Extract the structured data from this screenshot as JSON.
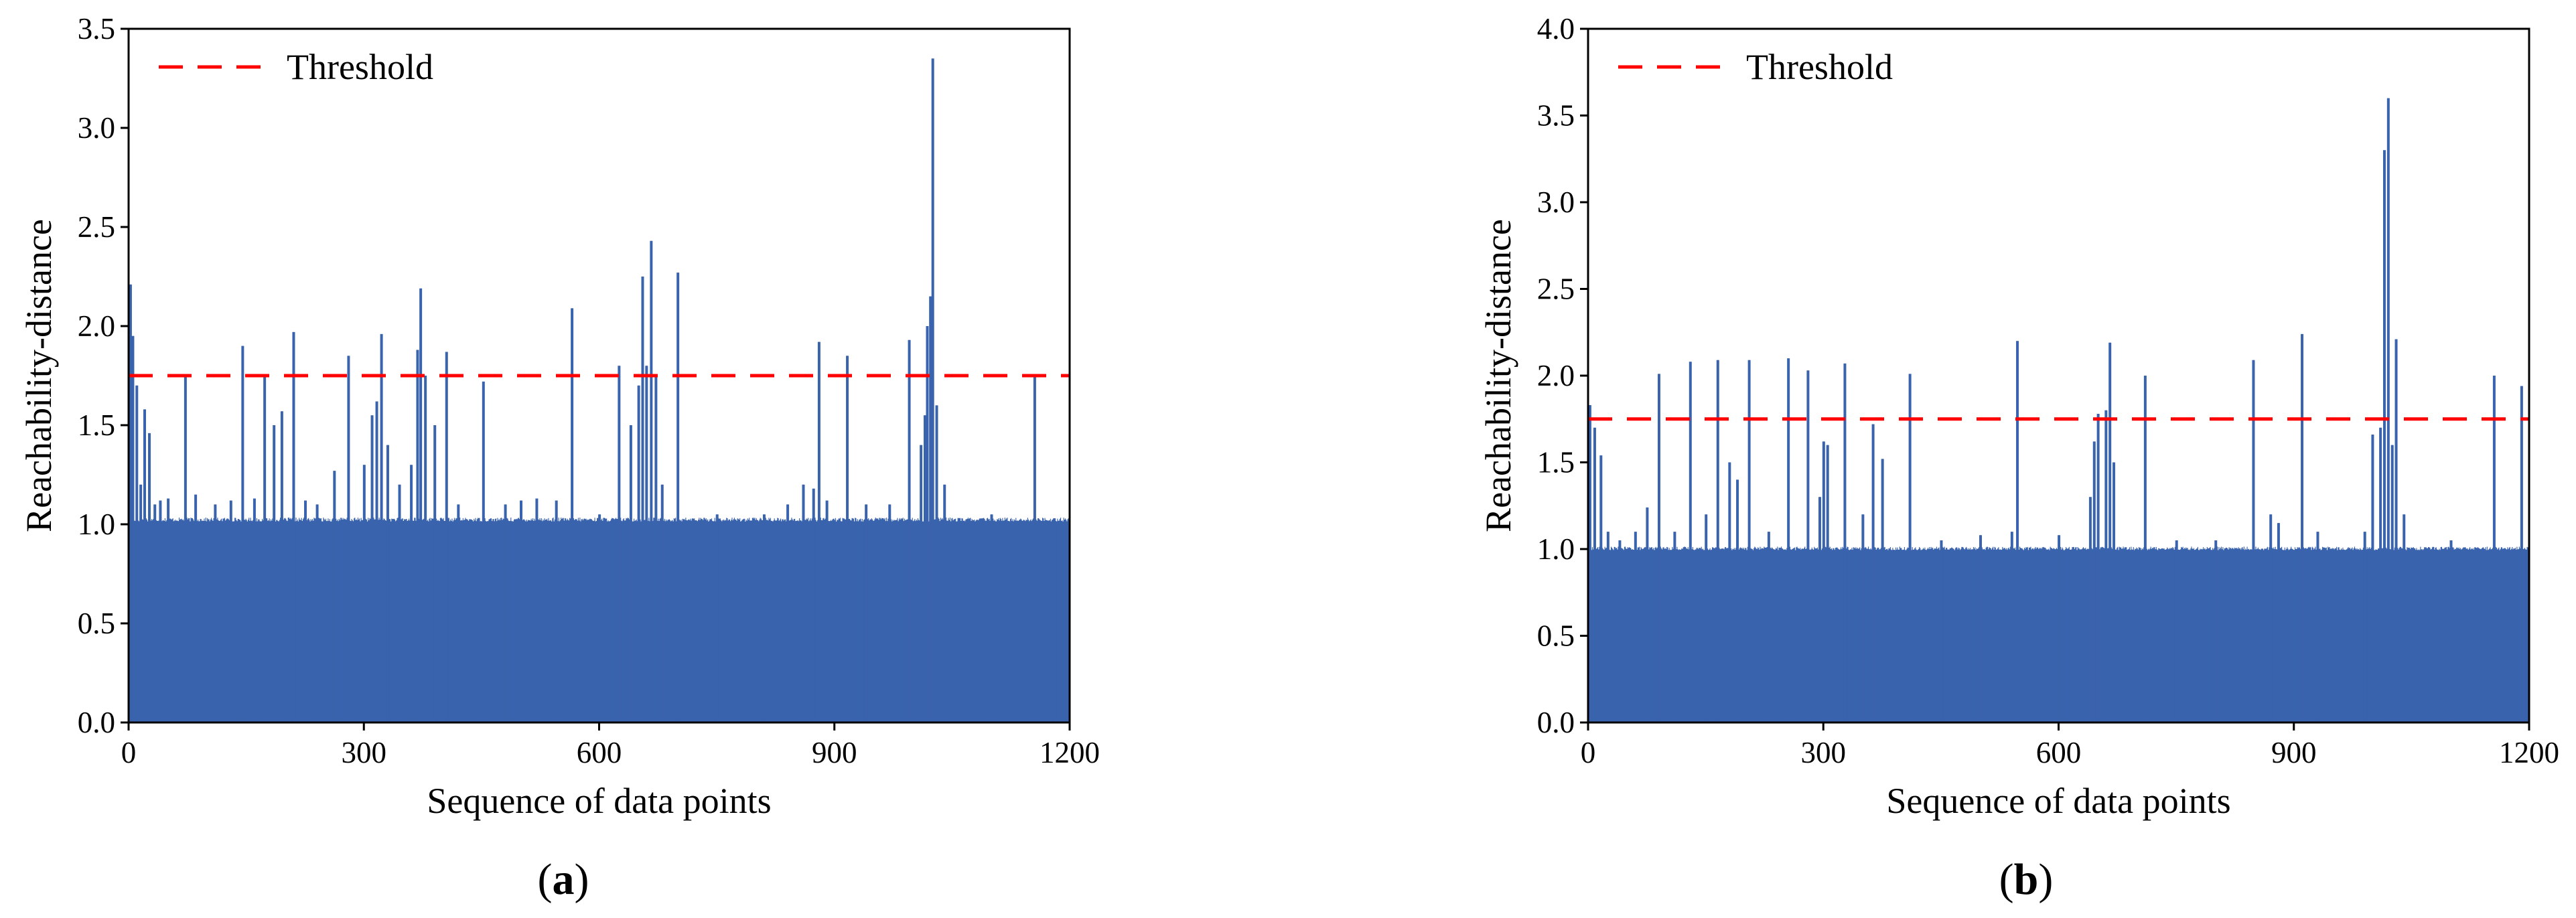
{
  "figure": {
    "panels": [
      {
        "label_open": "(",
        "label_letter": "a",
        "label_close": ")"
      },
      {
        "label_open": "(",
        "label_letter": "b",
        "label_close": ")"
      }
    ]
  },
  "chart_data": [
    {
      "type": "area",
      "title": "",
      "xlabel": "Sequence of data points",
      "ylabel": "Reachability-distance",
      "xlim": [
        0,
        1200
      ],
      "ylim": [
        0,
        3.5
      ],
      "xticks": [
        0,
        300,
        600,
        900,
        1200
      ],
      "yticks": [
        0.0,
        0.5,
        1.0,
        1.5,
        2.0,
        2.5,
        3.0,
        3.5
      ],
      "grid": false,
      "legend": {
        "position": "top-left",
        "entries": [
          "Threshold"
        ]
      },
      "threshold": 1.75,
      "series": [
        {
          "color": "#3a63ad",
          "baseline": 1.02,
          "noise": 0.02,
          "spikes": [
            [
              2,
              2.21
            ],
            [
              5,
              1.95
            ],
            [
              10,
              1.7
            ],
            [
              15,
              1.2
            ],
            [
              20,
              1.58
            ],
            [
              26,
              1.46
            ],
            [
              33,
              1.1
            ],
            [
              40,
              1.12
            ],
            [
              50,
              1.13
            ],
            [
              72,
              1.75
            ],
            [
              85,
              1.15
            ],
            [
              110,
              1.1
            ],
            [
              130,
              1.12
            ],
            [
              145,
              1.9
            ],
            [
              160,
              1.13
            ],
            [
              173,
              1.75
            ],
            [
              185,
              1.5
            ],
            [
              195,
              1.57
            ],
            [
              210,
              1.97
            ],
            [
              225,
              1.12
            ],
            [
              240,
              1.1
            ],
            [
              262,
              1.27
            ],
            [
              280,
              1.85
            ],
            [
              300,
              1.3
            ],
            [
              310,
              1.55
            ],
            [
              316,
              1.62
            ],
            [
              322,
              1.96
            ],
            [
              330,
              1.4
            ],
            [
              345,
              1.2
            ],
            [
              360,
              1.3
            ],
            [
              368,
              1.88
            ],
            [
              372,
              2.19
            ],
            [
              378,
              1.75
            ],
            [
              390,
              1.5
            ],
            [
              405,
              1.87
            ],
            [
              420,
              1.1
            ],
            [
              452,
              1.72
            ],
            [
              480,
              1.1
            ],
            [
              500,
              1.12
            ],
            [
              520,
              1.13
            ],
            [
              545,
              1.12
            ],
            [
              565,
              2.09
            ],
            [
              600,
              1.05
            ],
            [
              625,
              1.8
            ],
            [
              640,
              1.5
            ],
            [
              650,
              1.7
            ],
            [
              655,
              2.25
            ],
            [
              660,
              1.8
            ],
            [
              666,
              2.43
            ],
            [
              672,
              1.75
            ],
            [
              680,
              1.2
            ],
            [
              700,
              2.27
            ],
            [
              750,
              1.05
            ],
            [
              810,
              1.05
            ],
            [
              840,
              1.1
            ],
            [
              860,
              1.2
            ],
            [
              873,
              1.18
            ],
            [
              880,
              1.92
            ],
            [
              890,
              1.12
            ],
            [
              916,
              1.85
            ],
            [
              940,
              1.1
            ],
            [
              970,
              1.1
            ],
            [
              995,
              1.93
            ],
            [
              1010,
              1.4
            ],
            [
              1015,
              1.55
            ],
            [
              1018,
              2.0
            ],
            [
              1022,
              2.15
            ],
            [
              1025,
              3.35
            ],
            [
              1030,
              1.6
            ],
            [
              1040,
              1.2
            ],
            [
              1100,
              1.05
            ],
            [
              1155,
              1.75
            ],
            [
              1180,
              1.03
            ]
          ]
        }
      ]
    },
    {
      "type": "area",
      "title": "",
      "xlabel": "Sequence of data points",
      "ylabel": "Reachability-distance",
      "xlim": [
        0,
        1200
      ],
      "ylim": [
        0,
        4.0
      ],
      "xticks": [
        0,
        300,
        600,
        900,
        1200
      ],
      "yticks": [
        0.0,
        0.5,
        1.0,
        1.5,
        2.0,
        2.5,
        3.0,
        3.5,
        4.0
      ],
      "grid": false,
      "legend": {
        "position": "top-left",
        "entries": [
          "Threshold"
        ]
      },
      "threshold": 1.75,
      "series": [
        {
          "color": "#3a63ad",
          "baseline": 1.0,
          "noise": 0.02,
          "spikes": [
            [
              2,
              1.83
            ],
            [
              8,
              1.7
            ],
            [
              16,
              1.54
            ],
            [
              25,
              1.1
            ],
            [
              40,
              1.05
            ],
            [
              60,
              1.1
            ],
            [
              75,
              1.24
            ],
            [
              90,
              2.01
            ],
            [
              110,
              1.1
            ],
            [
              130,
              2.08
            ],
            [
              150,
              1.2
            ],
            [
              165,
              2.09
            ],
            [
              180,
              1.5
            ],
            [
              190,
              1.4
            ],
            [
              205,
              2.09
            ],
            [
              230,
              1.1
            ],
            [
              255,
              2.1
            ],
            [
              280,
              2.03
            ],
            [
              295,
              1.3
            ],
            [
              300,
              1.62
            ],
            [
              305,
              1.6
            ],
            [
              327,
              2.07
            ],
            [
              350,
              1.2
            ],
            [
              363,
              1.72
            ],
            [
              375,
              1.52
            ],
            [
              410,
              2.01
            ],
            [
              450,
              1.05
            ],
            [
              500,
              1.08
            ],
            [
              540,
              1.1
            ],
            [
              547,
              2.2
            ],
            [
              600,
              1.08
            ],
            [
              640,
              1.3
            ],
            [
              645,
              1.62
            ],
            [
              650,
              1.78
            ],
            [
              660,
              1.8
            ],
            [
              665,
              2.19
            ],
            [
              670,
              1.5
            ],
            [
              710,
              2.0
            ],
            [
              750,
              1.05
            ],
            [
              800,
              1.05
            ],
            [
              848,
              2.09
            ],
            [
              870,
              1.2
            ],
            [
              880,
              1.15
            ],
            [
              910,
              2.24
            ],
            [
              930,
              1.1
            ],
            [
              990,
              1.1
            ],
            [
              1000,
              1.66
            ],
            [
              1010,
              1.7
            ],
            [
              1015,
              3.3
            ],
            [
              1020,
              3.6
            ],
            [
              1025,
              1.6
            ],
            [
              1030,
              2.21
            ],
            [
              1040,
              1.2
            ],
            [
              1100,
              1.05
            ],
            [
              1155,
              2.0
            ],
            [
              1190,
              1.94
            ]
          ]
        }
      ]
    }
  ]
}
